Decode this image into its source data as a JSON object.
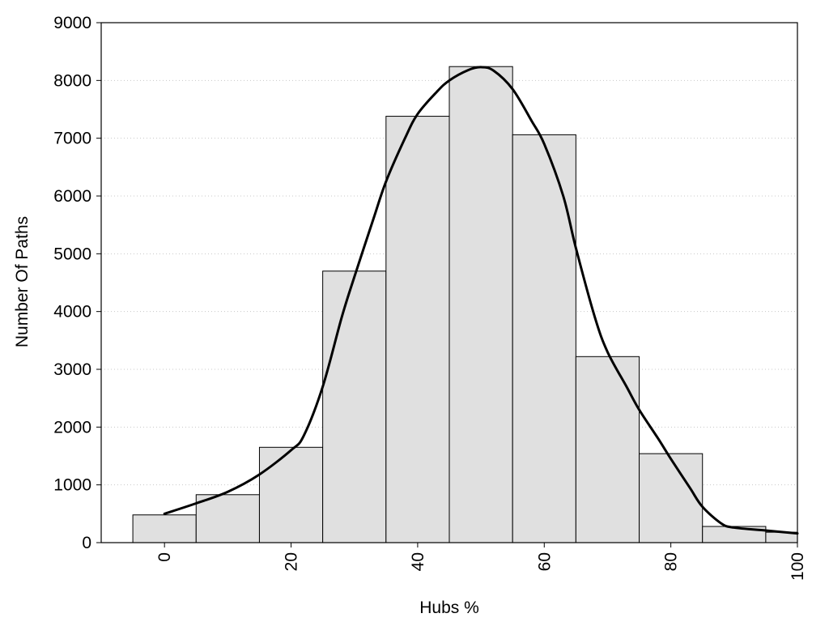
{
  "chart_data": {
    "type": "bar",
    "title": "",
    "xlabel": "Hubs %",
    "ylabel": "Number Of Paths",
    "xlim": [
      -10,
      100
    ],
    "ylim": [
      0,
      9000
    ],
    "x_ticks": [
      "0",
      "20",
      "40",
      "60",
      "80",
      "100"
    ],
    "y_ticks": [
      "0",
      "1000",
      "2000",
      "3000",
      "4000",
      "5000",
      "6000",
      "7000",
      "8000",
      "9000"
    ],
    "grid": "horizontal-dotted",
    "bar_width": 10,
    "bins": [
      {
        "x": 0,
        "value": 480
      },
      {
        "x": 10,
        "value": 830
      },
      {
        "x": 20,
        "value": 1650
      },
      {
        "x": 30,
        "value": 4700
      },
      {
        "x": 40,
        "value": 7380
      },
      {
        "x": 50,
        "value": 8240
      },
      {
        "x": 60,
        "value": 7060
      },
      {
        "x": 70,
        "value": 3220
      },
      {
        "x": 80,
        "value": 1540
      },
      {
        "x": 90,
        "value": 280
      },
      {
        "x": 100,
        "value": 180
      }
    ],
    "curve": {
      "x": [
        0,
        5,
        10,
        15,
        20,
        22,
        25,
        28,
        30,
        33,
        35,
        38,
        40,
        43,
        45,
        48,
        50,
        52,
        55,
        58,
        60,
        63,
        65,
        68,
        70,
        73,
        75,
        78,
        80,
        83,
        85,
        88,
        90,
        95,
        100
      ],
      "y": [
        500,
        680,
        880,
        1180,
        1600,
        1850,
        2700,
        3900,
        4600,
        5600,
        6250,
        7000,
        7420,
        7800,
        8000,
        8180,
        8230,
        8170,
        7850,
        7300,
        6900,
        6000,
        5100,
        3900,
        3300,
        2700,
        2300,
        1800,
        1450,
        950,
        620,
        330,
        260,
        210,
        160
      ]
    },
    "colors": {
      "bar_fill": "#e0e0e0",
      "bar_stroke": "#000000",
      "curve": "#000000",
      "grid": "#c8c8c8"
    }
  }
}
